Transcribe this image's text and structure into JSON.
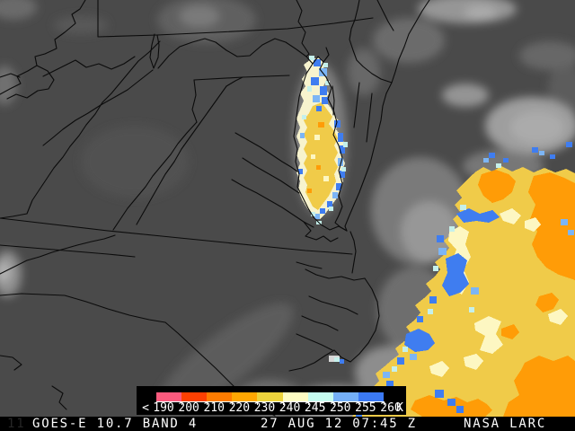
{
  "product_bar": {
    "frame_number": "11",
    "satellite_product": "GOES-E 10.7 BAND 4",
    "timestamp": "27 AUG 12 07:45 Z",
    "credit": "NASA LARC"
  },
  "colorbar": {
    "less_than_symbol": "<",
    "unit": "K",
    "tick_labels": [
      "190",
      "200",
      "210",
      "220",
      "230",
      "240",
      "245",
      "250",
      "255",
      "260"
    ],
    "segment_colors": [
      "#FA5A7D",
      "#FD4002",
      "#FE7C00",
      "#FFA702",
      "#EDD33C",
      "#FEFCC3",
      "#C5FBEF",
      "#74AFF7",
      "#3B79F3"
    ]
  },
  "map_palette": {
    "land_background": "#4A4A4A",
    "boundary_lines": "#0B0B0B",
    "cold_cloud_gold": "#F0CB49",
    "cold_cloud_orange": "#FF9C07",
    "cold_cloud_cream": "#FDF7C2",
    "cold_cloud_pale_cyan": "#C5F0EB",
    "cold_cloud_light_blue": "#7CB5F5",
    "cold_cloud_blue": "#3F7DF0"
  }
}
